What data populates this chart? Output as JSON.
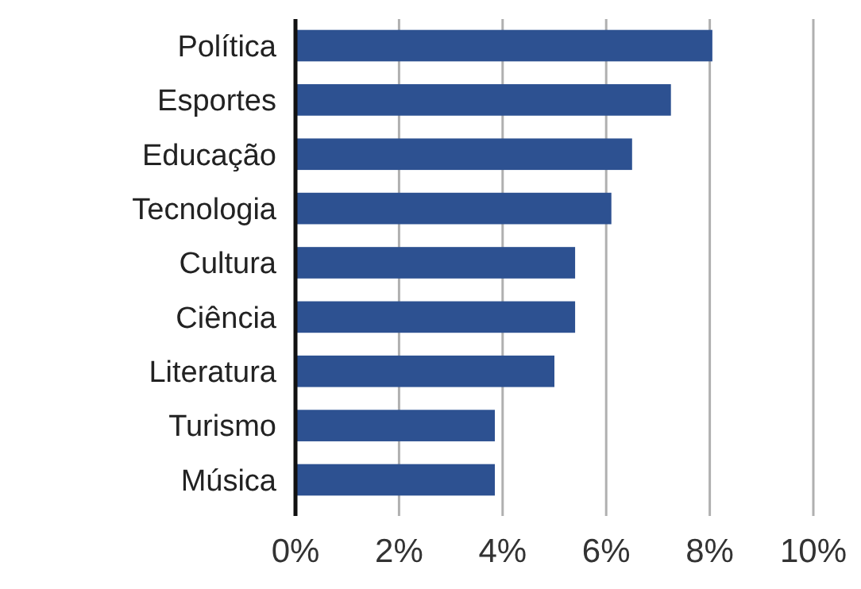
{
  "chart_data": {
    "type": "bar",
    "orientation": "horizontal",
    "categories": [
      "Política",
      "Esportes",
      "Educação",
      "Tecnologia",
      "Cultura",
      "Ciência",
      "Literatura",
      "Turismo",
      "Música"
    ],
    "values": [
      8.05,
      7.25,
      6.5,
      6.1,
      5.4,
      5.4,
      5.0,
      3.85,
      3.85
    ],
    "color": "#2d5191",
    "xlim": [
      0,
      10
    ],
    "xticks": [
      {
        "value": 0,
        "label": "0%"
      },
      {
        "value": 2,
        "label": "2%"
      },
      {
        "value": 4,
        "label": "4%"
      },
      {
        "value": 6,
        "label": "6%"
      },
      {
        "value": 8,
        "label": "8%"
      },
      {
        "value": 10,
        "label": "10%"
      }
    ],
    "grid": "x"
  }
}
